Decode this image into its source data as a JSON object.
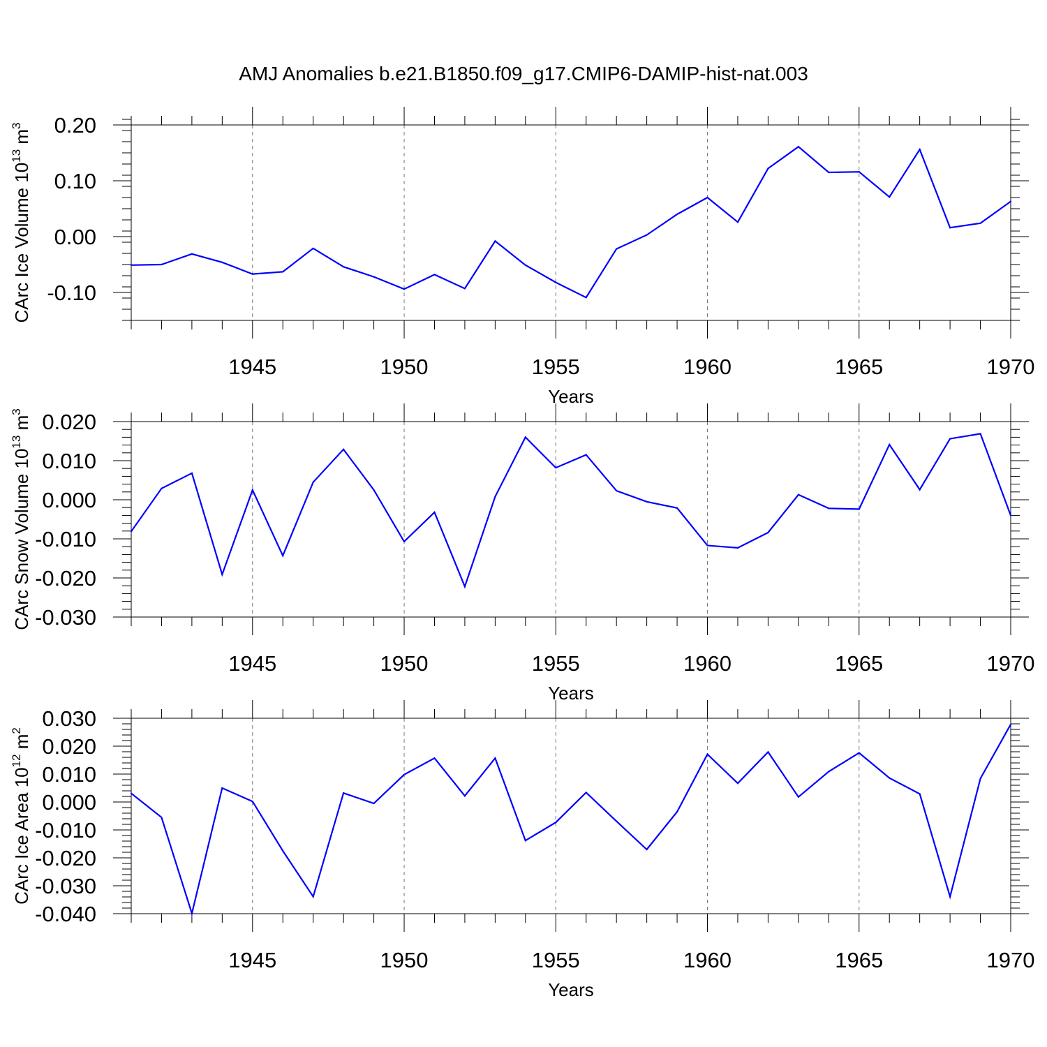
{
  "figure": {
    "title": "AMJ Anomalies b.e21.B1850.f09_g17.CMIP6-DAMIP-hist-nat.003",
    "line_color": "#0000ff",
    "grid_color": "#777777"
  },
  "chart_data": [
    {
      "type": "line",
      "ylabel_main": "CArc Ice Volume 10",
      "ylabel_exp": "13",
      "ylabel_tail": " m",
      "ylabel_unit_exp": "3",
      "xlabel": "Years",
      "xlim": [
        1941,
        1970
      ],
      "ylim": [
        -0.15,
        0.2
      ],
      "yticks": [
        "0.20",
        "0.10",
        "0.00",
        "-0.10"
      ],
      "ytick_values": [
        0.2,
        0.1,
        0.0,
        -0.1
      ],
      "xticks": [
        "1945",
        "1950",
        "1955",
        "1960",
        "1965",
        "1970"
      ],
      "xtick_values": [
        1945,
        1950,
        1955,
        1960,
        1965,
        1970
      ],
      "x": [
        1941,
        1942,
        1943,
        1944,
        1945,
        1946,
        1947,
        1948,
        1949,
        1950,
        1951,
        1952,
        1953,
        1954,
        1955,
        1956,
        1957,
        1958,
        1959,
        1960,
        1961,
        1962,
        1963,
        1964,
        1965,
        1966,
        1967,
        1968,
        1969,
        1970
      ],
      "values": [
        -0.051,
        -0.05,
        -0.031,
        -0.046,
        -0.067,
        -0.063,
        -0.021,
        -0.054,
        -0.072,
        -0.094,
        -0.068,
        -0.093,
        -0.008,
        -0.051,
        -0.082,
        -0.109,
        -0.022,
        0.003,
        0.04,
        0.07,
        0.026,
        0.122,
        0.161,
        0.115,
        0.116,
        0.071,
        0.156,
        0.016,
        0.024,
        0.063
      ]
    },
    {
      "type": "line",
      "ylabel_main": "CArc Snow Volume 10",
      "ylabel_exp": "13",
      "ylabel_tail": " m",
      "ylabel_unit_exp": "3",
      "xlabel": "Years",
      "xlim": [
        1941,
        1970
      ],
      "ylim": [
        -0.03,
        0.02
      ],
      "yticks": [
        "0.020",
        "0.010",
        "0.000",
        "-0.010",
        "-0.020",
        "-0.030"
      ],
      "ytick_values": [
        0.02,
        0.01,
        0.0,
        -0.01,
        -0.02,
        -0.03
      ],
      "xticks": [
        "1945",
        "1950",
        "1955",
        "1960",
        "1965",
        "1970"
      ],
      "xtick_values": [
        1945,
        1950,
        1955,
        1960,
        1965,
        1970
      ],
      "x": [
        1941,
        1942,
        1943,
        1944,
        1945,
        1946,
        1947,
        1948,
        1949,
        1950,
        1951,
        1952,
        1953,
        1954,
        1955,
        1956,
        1957,
        1958,
        1959,
        1960,
        1961,
        1962,
        1963,
        1964,
        1965,
        1966,
        1967,
        1968,
        1969,
        1970
      ],
      "values": [
        -0.0081,
        0.0029,
        0.0068,
        -0.0191,
        0.0025,
        -0.0143,
        0.0045,
        0.0129,
        0.0025,
        -0.0107,
        -0.0032,
        -0.0222,
        0.0008,
        0.016,
        0.0082,
        0.0115,
        0.0023,
        -0.0005,
        -0.0021,
        -0.0117,
        -0.0123,
        -0.0084,
        0.0013,
        -0.0022,
        -0.0024,
        0.0141,
        0.0026,
        0.0156,
        0.0169,
        -0.004
      ]
    },
    {
      "type": "line",
      "ylabel_main": "CArc Ice Area 10",
      "ylabel_exp": "12",
      "ylabel_tail": " m",
      "ylabel_unit_exp": "2",
      "xlabel": "Years",
      "xlim": [
        1941,
        1970
      ],
      "ylim": [
        -0.04,
        0.03
      ],
      "yticks": [
        "0.030",
        "0.020",
        "0.010",
        "0.000",
        "-0.010",
        "-0.020",
        "-0.030",
        "-0.040"
      ],
      "ytick_values": [
        0.03,
        0.02,
        0.01,
        0.0,
        -0.01,
        -0.02,
        -0.03,
        -0.04
      ],
      "xticks": [
        "1945",
        "1950",
        "1955",
        "1960",
        "1965",
        "1970"
      ],
      "xtick_values": [
        1945,
        1950,
        1955,
        1960,
        1965,
        1970
      ],
      "x": [
        1941,
        1942,
        1943,
        1944,
        1945,
        1946,
        1947,
        1948,
        1949,
        1950,
        1951,
        1952,
        1953,
        1954,
        1955,
        1956,
        1957,
        1958,
        1959,
        1960,
        1961,
        1962,
        1963,
        1964,
        1965,
        1966,
        1967,
        1968,
        1969,
        1970
      ],
      "values": [
        0.0031,
        -0.0055,
        -0.0399,
        0.005,
        0.0002,
        -0.0175,
        -0.0339,
        0.0032,
        -0.0005,
        0.0098,
        0.0157,
        0.0022,
        0.0157,
        -0.0138,
        -0.0073,
        0.0034,
        -0.0069,
        -0.017,
        -0.0035,
        0.0171,
        0.0067,
        0.0179,
        0.0018,
        0.0109,
        0.0176,
        0.0086,
        0.0029,
        -0.0339,
        0.0084,
        0.0278
      ]
    }
  ]
}
